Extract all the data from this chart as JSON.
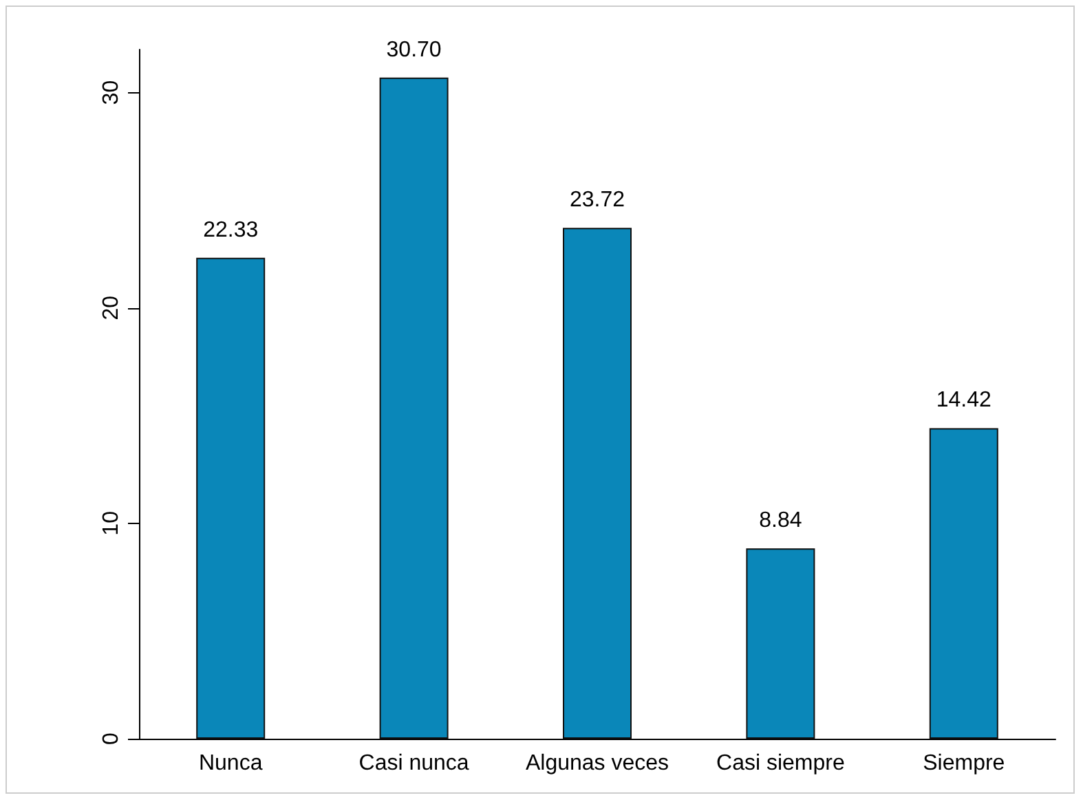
{
  "chart_data": {
    "type": "bar",
    "categories": [
      "Nunca",
      "Casi nunca",
      "Algunas veces",
      "Casi siempre",
      "Siempre"
    ],
    "values": [
      22.33,
      30.7,
      23.72,
      8.84,
      14.42
    ],
    "value_labels": [
      "22.33",
      "30.70",
      "23.72",
      "8.84",
      "14.42"
    ],
    "color": "#0a87b9",
    "ylim": [
      0,
      32
    ],
    "yticks": [
      0,
      10,
      20,
      30
    ],
    "grid": false
  }
}
